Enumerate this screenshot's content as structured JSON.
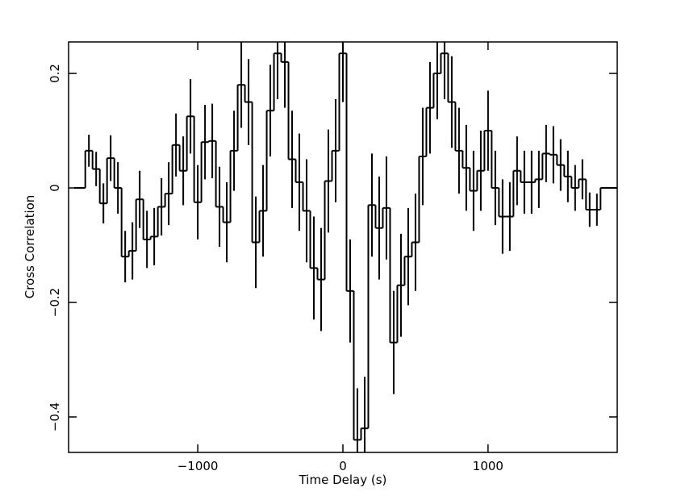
{
  "chart_data": {
    "type": "step",
    "xlabel": "Time Delay (s)",
    "ylabel": "Cross Correlation",
    "color": "#000000",
    "xlim": [
      -1890,
      1890
    ],
    "ylim": [
      -0.462,
      0.255
    ],
    "xticks": [
      {
        "value": -1000,
        "label": "−1000"
      },
      0,
      1000
    ],
    "yticks": [
      {
        "value": -0.4,
        "label": "−0.4"
      },
      {
        "value": -0.2,
        "label": "−0.2"
      },
      0,
      0.2
    ],
    "x": [
      -1750,
      -1700,
      -1650,
      -1600,
      -1550,
      -1500,
      -1450,
      -1400,
      -1350,
      -1300,
      -1250,
      -1200,
      -1150,
      -1100,
      -1050,
      -1000,
      -950,
      -900,
      -850,
      -800,
      -750,
      -700,
      -650,
      -600,
      -550,
      -500,
      -450,
      -400,
      -350,
      -300,
      -250,
      -200,
      -150,
      -100,
      -50,
      0,
      50,
      100,
      150,
      200,
      250,
      300,
      350,
      400,
      450,
      500,
      550,
      600,
      650,
      700,
      750,
      800,
      850,
      900,
      950,
      1000,
      1050,
      1100,
      1150,
      1200,
      1250,
      1300,
      1350,
      1400,
      1450,
      1500,
      1550,
      1600,
      1650,
      1700,
      1750
    ],
    "values": [
      0.065,
      0.033,
      -0.027,
      0.052,
      0.0,
      -0.12,
      -0.11,
      -0.02,
      -0.09,
      -0.085,
      -0.033,
      -0.01,
      0.075,
      0.03,
      0.125,
      -0.025,
      0.08,
      0.082,
      -0.033,
      -0.06,
      0.065,
      0.18,
      0.15,
      -0.095,
      -0.04,
      0.135,
      0.235,
      0.22,
      0.05,
      0.01,
      -0.04,
      -0.14,
      -0.16,
      0.012,
      0.065,
      0.235,
      -0.18,
      -0.44,
      -0.42,
      -0.03,
      -0.07,
      -0.035,
      -0.27,
      -0.17,
      -0.12,
      -0.095,
      0.055,
      0.14,
      0.2,
      0.235,
      0.15,
      0.065,
      0.035,
      -0.005,
      0.03,
      0.1,
      0.0,
      -0.05,
      -0.05,
      0.03,
      0.01,
      0.01,
      0.015,
      0.06,
      0.058,
      0.04,
      0.02,
      0.0,
      0.015,
      -0.038,
      -0.038
    ],
    "errors": [
      0.028,
      0.03,
      0.035,
      0.04,
      0.045,
      0.045,
      0.05,
      0.05,
      0.05,
      0.05,
      0.05,
      0.055,
      0.055,
      0.06,
      0.065,
      0.065,
      0.065,
      0.065,
      0.07,
      0.07,
      0.07,
      0.075,
      0.075,
      0.08,
      0.08,
      0.08,
      0.08,
      0.08,
      0.085,
      0.085,
      0.09,
      0.09,
      0.09,
      0.09,
      0.09,
      0.085,
      0.09,
      0.09,
      0.09,
      0.09,
      0.09,
      0.09,
      0.09,
      0.09,
      0.085,
      0.085,
      0.085,
      0.08,
      0.08,
      0.08,
      0.08,
      0.075,
      0.075,
      0.07,
      0.07,
      0.07,
      0.065,
      0.065,
      0.06,
      0.06,
      0.055,
      0.055,
      0.05,
      0.05,
      0.05,
      0.045,
      0.045,
      0.04,
      0.035,
      0.03,
      0.028
    ]
  }
}
